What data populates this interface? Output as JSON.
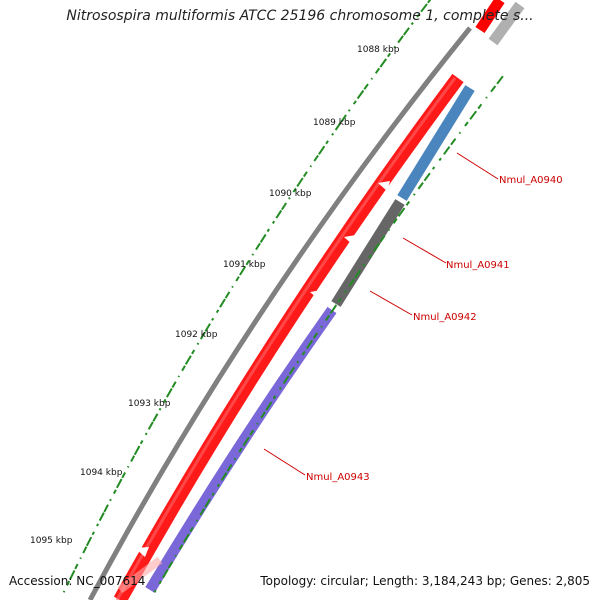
{
  "title": "Nitrosospira multiformis ATCC 25196 chromosome 1, complete s...",
  "ticks": [
    {
      "label": "1088 kbp"
    },
    {
      "label": "1089 kbp"
    },
    {
      "label": "1090 kbp"
    },
    {
      "label": "1091 kbp"
    },
    {
      "label": "1092 kbp"
    },
    {
      "label": "1093 kbp"
    },
    {
      "label": "1094 kbp"
    },
    {
      "label": "1095 kbp"
    }
  ],
  "genes": [
    {
      "name": "Nmul_A0940",
      "color": "#4a86bd"
    },
    {
      "name": "Nmul_A0941",
      "color": "#666666"
    },
    {
      "name": "Nmul_A0942",
      "color": "#cc0000"
    },
    {
      "name": "Nmul_A0943",
      "color": "#7b68d8"
    }
  ],
  "colors": {
    "forward_strand": "#ff0000",
    "backbone": "#808080",
    "gc_skew": "#228b22",
    "label": "#cc0000"
  },
  "footer": {
    "accession": "Accession: NC_007614",
    "stats": "Topology: circular; Length: 3,184,243 bp; Genes: 2,805"
  }
}
